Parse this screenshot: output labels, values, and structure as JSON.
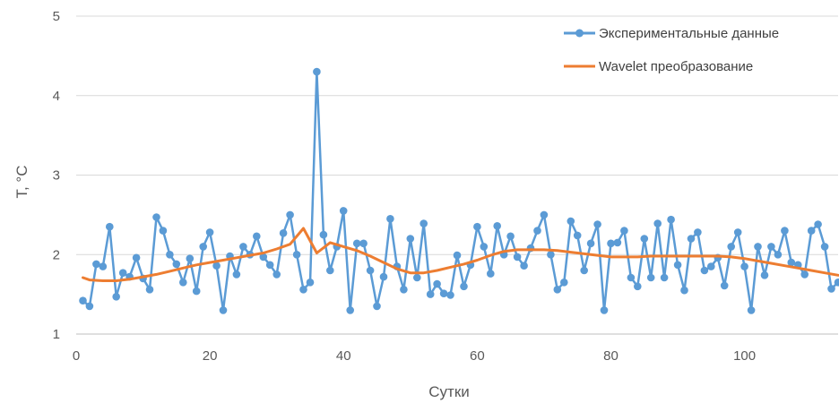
{
  "chart_data": {
    "type": "line",
    "xlabel": "Сутки",
    "ylabel": "T, °C",
    "xlim": [
      0,
      114
    ],
    "ylim": [
      1,
      5
    ],
    "x_ticks": [
      0,
      20,
      40,
      60,
      80,
      100
    ],
    "y_ticks": [
      1,
      2,
      3,
      4,
      5
    ],
    "grid": "horizontal",
    "legend_position": "top-right",
    "series": [
      {
        "name": "Экспериментальные данные",
        "color": "#5b9bd5",
        "marker": "circle",
        "x": [
          1,
          2,
          3,
          4,
          5,
          6,
          7,
          8,
          9,
          10,
          11,
          12,
          13,
          14,
          15,
          16,
          17,
          18,
          19,
          20,
          21,
          22,
          23,
          24,
          25,
          26,
          27,
          28,
          29,
          30,
          31,
          32,
          33,
          34,
          35,
          36,
          37,
          38,
          39,
          40,
          41,
          42,
          43,
          44,
          45,
          46,
          47,
          48,
          49,
          50,
          51,
          52,
          53,
          54,
          55,
          56,
          57,
          58,
          59,
          60,
          61,
          62,
          63,
          64,
          65,
          66,
          67,
          68,
          69,
          70,
          71,
          72,
          73,
          74,
          75,
          76,
          77,
          78,
          79,
          80,
          81,
          82,
          83,
          84,
          85,
          86,
          87,
          88,
          89,
          90,
          91,
          92,
          93,
          94,
          95,
          96,
          97,
          98,
          99,
          100,
          101,
          102,
          103,
          104,
          105,
          106,
          107,
          108,
          109,
          110,
          111,
          112,
          113,
          114
        ],
        "values": [
          1.42,
          1.35,
          1.88,
          1.85,
          2.35,
          1.47,
          1.77,
          1.72,
          1.96,
          1.7,
          1.56,
          2.47,
          2.3,
          2.0,
          1.88,
          1.65,
          1.95,
          1.54,
          2.1,
          2.28,
          1.86,
          1.3,
          1.98,
          1.75,
          2.1,
          2.0,
          2.23,
          1.97,
          1.87,
          1.75,
          2.27,
          2.5,
          2.0,
          1.56,
          1.65,
          4.3,
          2.25,
          1.8,
          2.1,
          2.55,
          1.3,
          2.14,
          2.14,
          1.8,
          1.35,
          1.72,
          2.45,
          1.85,
          1.56,
          2.2,
          1.71,
          2.39,
          1.5,
          1.63,
          1.51,
          1.49,
          1.99,
          1.6,
          1.87,
          2.35,
          2.1,
          1.76,
          2.36,
          2.0,
          2.23,
          1.97,
          1.86,
          2.08,
          2.3,
          2.5,
          2.0,
          1.56,
          1.65,
          2.42,
          2.24,
          1.8,
          2.14,
          2.38,
          1.3,
          2.14,
          2.15,
          2.3,
          1.71,
          1.6,
          2.2,
          1.71,
          2.39,
          1.71,
          2.44,
          1.87,
          1.55,
          2.2,
          2.28,
          1.8,
          1.85,
          1.96,
          1.61,
          2.1,
          2.28,
          1.85,
          1.3,
          2.1,
          1.74,
          2.1,
          2.0,
          2.3,
          1.9,
          1.87,
          1.75,
          2.3,
          2.38,
          2.1,
          1.57,
          1.65
        ]
      },
      {
        "name": "Wavelet преобразование",
        "color": "#ed7d31",
        "marker": "none",
        "x": [
          1,
          2,
          4,
          6,
          8,
          10,
          12,
          14,
          16,
          18,
          20,
          22,
          24,
          26,
          28,
          30,
          32,
          34,
          36,
          38,
          40,
          42,
          44,
          46,
          48,
          50,
          52,
          54,
          56,
          58,
          60,
          62,
          64,
          66,
          68,
          70,
          72,
          74,
          76,
          78,
          80,
          82,
          84,
          86,
          88,
          90,
          92,
          94,
          96,
          98,
          100,
          102,
          104,
          106,
          108,
          110,
          112,
          114
        ],
        "values": [
          1.71,
          1.68,
          1.67,
          1.67,
          1.69,
          1.72,
          1.75,
          1.79,
          1.83,
          1.87,
          1.9,
          1.93,
          1.96,
          1.99,
          2.02,
          2.07,
          2.13,
          2.33,
          2.02,
          2.15,
          2.1,
          2.05,
          1.98,
          1.9,
          1.82,
          1.77,
          1.77,
          1.8,
          1.84,
          1.88,
          1.93,
          1.99,
          2.04,
          2.06,
          2.06,
          2.06,
          2.05,
          2.03,
          2.01,
          1.99,
          1.97,
          1.97,
          1.97,
          1.98,
          1.98,
          1.98,
          1.98,
          1.98,
          1.98,
          1.97,
          1.95,
          1.92,
          1.89,
          1.86,
          1.83,
          1.8,
          1.77,
          1.74
        ]
      }
    ]
  }
}
